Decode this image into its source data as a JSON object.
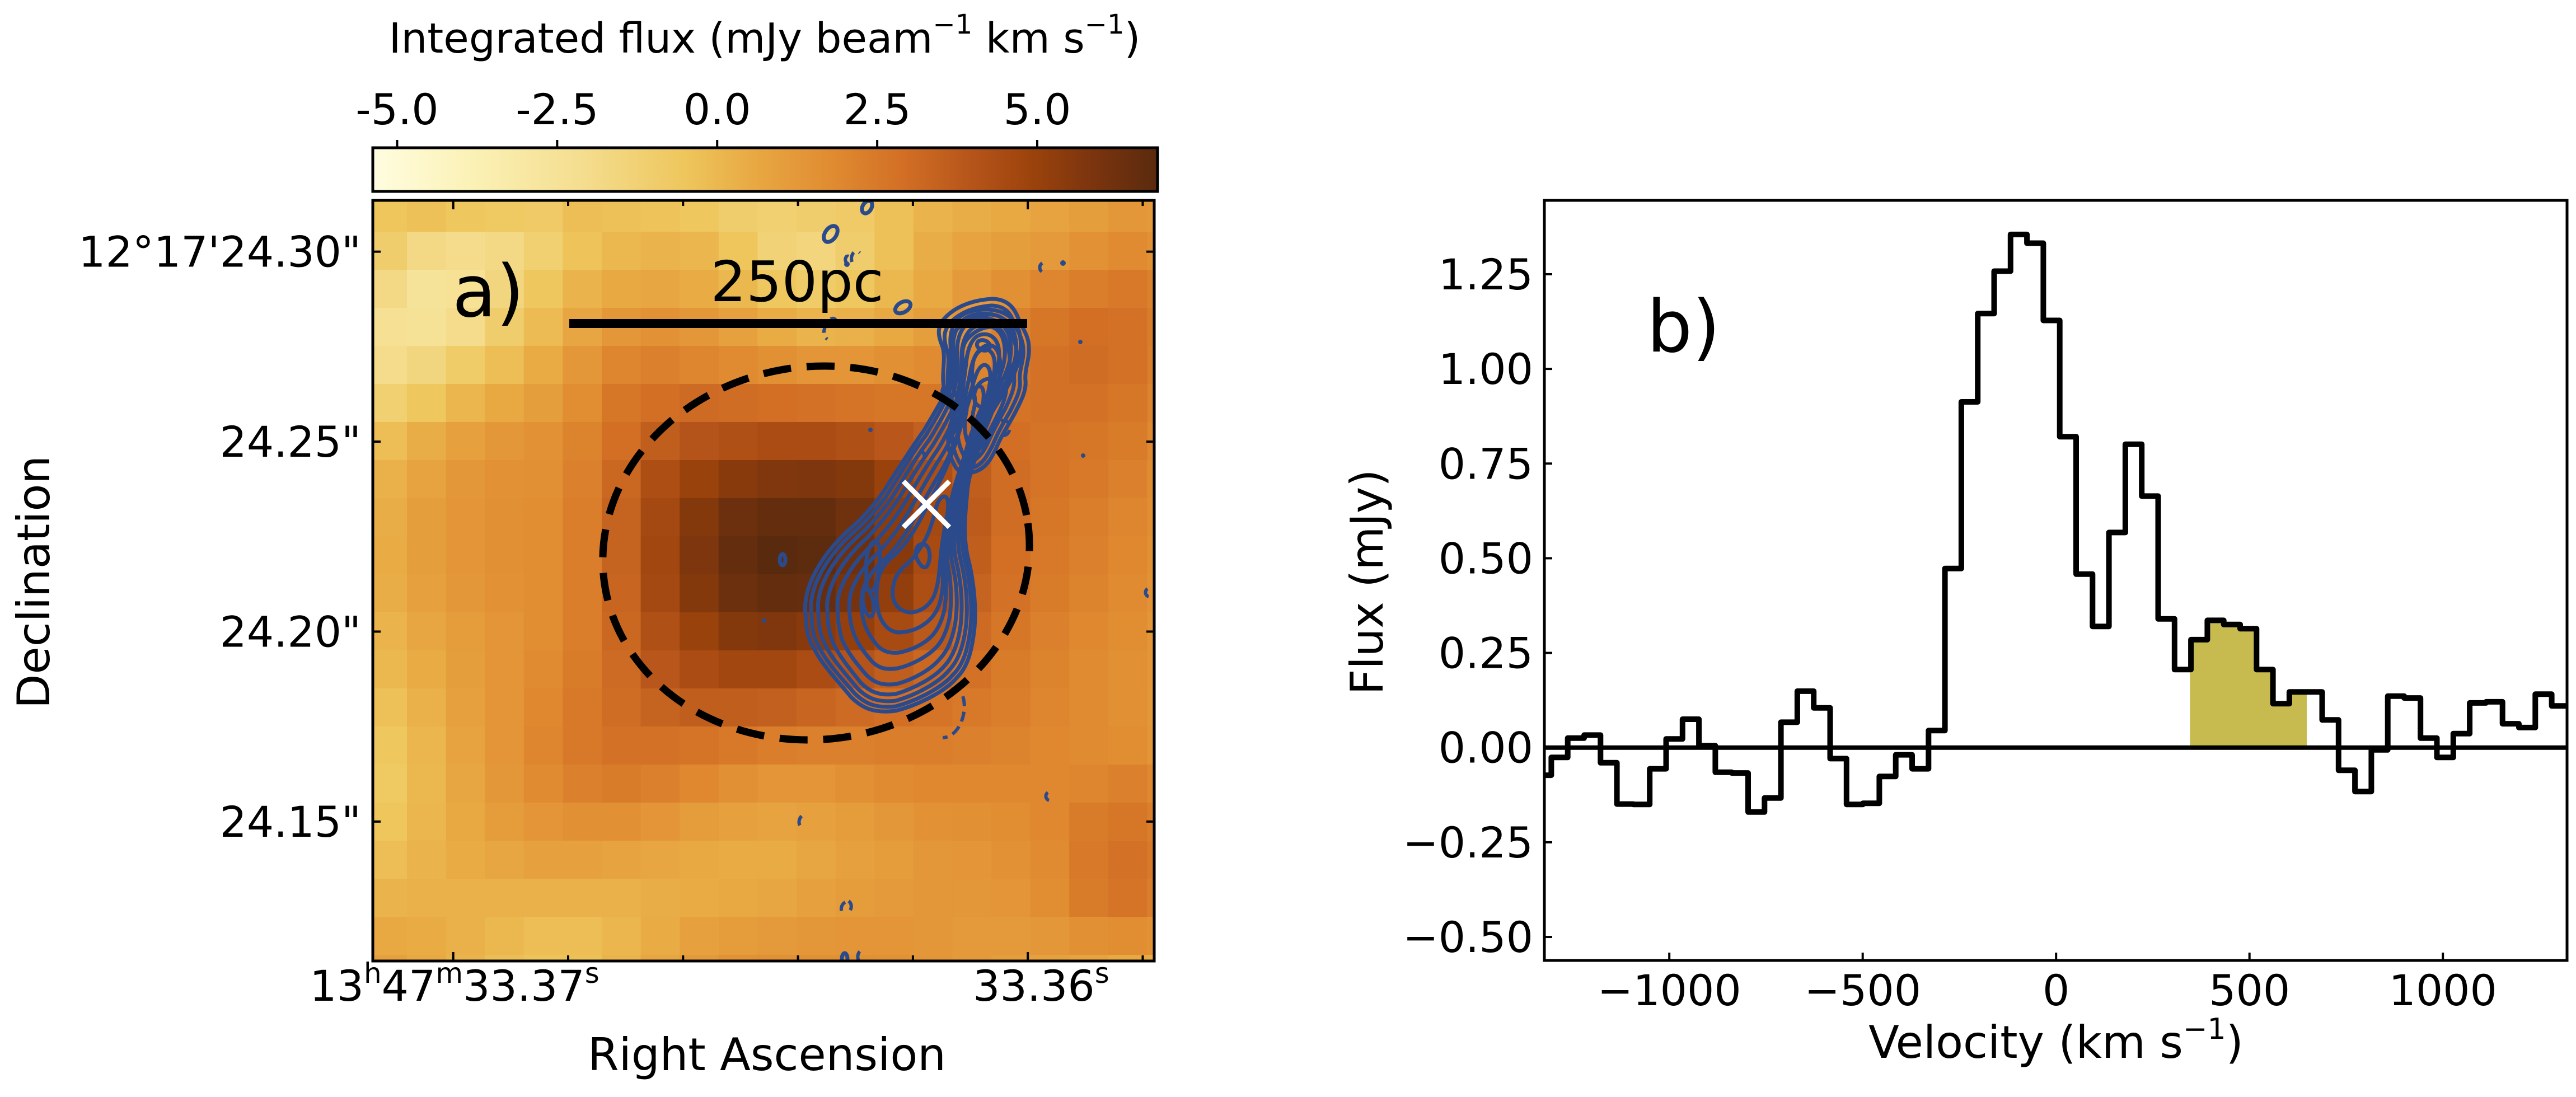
{
  "figure": {
    "panel_a": {
      "label": "a)",
      "colorbar": {
        "title_main": "Integrated flux (mJy beam",
        "title_sup1": "−1",
        "title_mid": " km s",
        "title_sup2": "−1",
        "title_end": ")",
        "range": [
          -5.38,
          6.88
        ],
        "ticks": [
          -5.0,
          -2.5,
          0.0,
          2.5,
          5.0
        ],
        "tick_labels": [
          "-5.0",
          "-2.5",
          "0.0",
          "2.5",
          "5.0"
        ],
        "colormap_stops": [
          {
            "value": -5.38,
            "color": "#fffde0"
          },
          {
            "value": -3.8,
            "color": "#fbf1b5"
          },
          {
            "value": -2.0,
            "color": "#f4dc8c"
          },
          {
            "value": -0.5,
            "color": "#eec65c"
          },
          {
            "value": 0.6,
            "color": "#e8a842"
          },
          {
            "value": 1.8,
            "color": "#e08b31"
          },
          {
            "value": 2.9,
            "color": "#d26f25"
          },
          {
            "value": 4.0,
            "color": "#b5541a"
          },
          {
            "value": 4.9,
            "color": "#9c430c"
          },
          {
            "value": 5.9,
            "color": "#7a340e"
          },
          {
            "value": 6.88,
            "color": "#5a2a0e"
          }
        ]
      },
      "xaxis": {
        "label": "Right Ascension",
        "range_s": [
          33.3714,
          33.3578
        ],
        "major_ticks": [
          {
            "value_s": 33.37,
            "label_h": "13",
            "sup_h": "h",
            "label_m": "47",
            "sup_m": "m",
            "label_s": "33.37",
            "sup_s": "s"
          },
          {
            "value_s": 33.36,
            "label_s": "33.36",
            "sup_s": "s"
          }
        ],
        "minor_ticks_s": [
          33.368,
          33.366,
          33.364,
          33.362,
          33.358
        ]
      },
      "yaxis": {
        "label": "Declination",
        "range_arcsec": [
          24.1133,
          24.3135
        ],
        "ticks": [
          {
            "value": 24.3,
            "label": "12°17'24.30\""
          },
          {
            "value": 24.25,
            "label": "24.25\""
          },
          {
            "value": 24.2,
            "label": "24.20\""
          },
          {
            "value": 24.15,
            "label": "24.15\""
          }
        ]
      },
      "scale_bar": {
        "label": "250pc"
      },
      "marker": {
        "symbol": "x",
        "color": "#ffffff"
      },
      "contour_color": "#2b4a8b",
      "ellipse_style": "dashed black"
    },
    "panel_b": {
      "label": "b)",
      "fill_color": "#c7bb50"
    }
  },
  "chart_data": [
    {
      "type": "heatmap",
      "title": "Integrated flux map with contours",
      "xlabel": "Right Ascension",
      "ylabel": "Declination",
      "colorbar_label": "Integrated flux (mJy beam^-1 km s^-1)",
      "colorbar_range": [
        -5.38,
        6.88
      ],
      "grid_rows": 21,
      "grid_cols": 21,
      "values": [
        [
          -0.5,
          -0.3,
          -0.6,
          -0.7,
          -0.8,
          -0.2,
          -0.3,
          -0.4,
          -0.6,
          -1.0,
          -1.2,
          -1.0,
          -0.8,
          -0.3,
          0.2,
          0.4,
          0.6,
          0.8,
          1.0,
          1.3,
          1.2
        ],
        [
          -1.0,
          -1.8,
          -2.0,
          -1.8,
          -1.2,
          -0.4,
          0.0,
          0.2,
          0.1,
          -0.5,
          -1.3,
          -1.5,
          -1.0,
          -0.3,
          0.4,
          0.8,
          1.0,
          1.2,
          1.5,
          1.8,
          1.6
        ],
        [
          -1.8,
          -2.6,
          -2.4,
          -1.6,
          -0.6,
          0.2,
          0.6,
          0.7,
          0.5,
          0.0,
          -0.6,
          -0.9,
          -0.6,
          0.0,
          0.6,
          1.2,
          1.6,
          2.0,
          2.3,
          2.5,
          2.2
        ],
        [
          -2.3,
          -2.5,
          -2.0,
          -1.0,
          -0.1,
          0.7,
          1.3,
          1.5,
          1.3,
          0.9,
          0.5,
          0.2,
          0.3,
          0.6,
          1.0,
          1.5,
          2.2,
          2.6,
          2.9,
          2.8,
          2.4
        ],
        [
          -2.0,
          -1.6,
          -0.9,
          -0.2,
          0.5,
          1.3,
          2.0,
          2.2,
          2.0,
          1.8,
          1.6,
          1.4,
          1.4,
          1.6,
          1.8,
          2.0,
          2.5,
          2.8,
          3.0,
          2.8,
          2.3
        ],
        [
          -1.2,
          -0.6,
          0.1,
          0.6,
          1.0,
          1.7,
          2.6,
          2.9,
          3.1,
          3.0,
          2.9,
          2.8,
          2.7,
          2.6,
          2.6,
          2.6,
          2.7,
          2.8,
          2.8,
          2.6,
          2.1
        ],
        [
          -0.2,
          0.4,
          0.9,
          1.3,
          1.5,
          2.1,
          2.9,
          3.6,
          4.0,
          4.2,
          4.4,
          4.4,
          4.2,
          3.9,
          3.5,
          3.1,
          2.9,
          2.7,
          2.6,
          2.4,
          1.9
        ],
        [
          0.3,
          0.8,
          1.3,
          1.5,
          1.6,
          2.2,
          3.2,
          4.3,
          5.0,
          5.5,
          5.7,
          5.8,
          5.6,
          5.0,
          4.3,
          3.6,
          3.0,
          2.7,
          2.5,
          2.2,
          1.8
        ],
        [
          0.4,
          1.0,
          1.4,
          1.6,
          1.7,
          2.3,
          3.4,
          4.6,
          5.6,
          6.3,
          6.6,
          6.6,
          6.2,
          5.4,
          4.6,
          3.7,
          3.0,
          2.6,
          2.3,
          2.0,
          1.7
        ],
        [
          0.5,
          1.0,
          1.4,
          1.6,
          1.7,
          2.3,
          3.4,
          4.7,
          5.8,
          6.6,
          6.9,
          6.8,
          6.3,
          5.5,
          4.5,
          3.6,
          2.9,
          2.5,
          2.2,
          1.9,
          1.6
        ],
        [
          0.4,
          0.9,
          1.3,
          1.5,
          1.7,
          2.3,
          3.3,
          4.6,
          5.6,
          6.3,
          6.6,
          6.5,
          6.0,
          5.2,
          4.3,
          3.4,
          2.8,
          2.4,
          2.1,
          1.8,
          1.5
        ],
        [
          0.2,
          0.7,
          1.1,
          1.4,
          1.7,
          2.3,
          3.2,
          4.2,
          5.0,
          5.6,
          5.7,
          5.5,
          5.1,
          4.5,
          3.8,
          3.1,
          2.6,
          2.2,
          1.9,
          1.7,
          1.4
        ],
        [
          0.0,
          0.5,
          1.0,
          1.4,
          1.8,
          2.4,
          3.1,
          3.9,
          4.4,
          4.7,
          4.7,
          4.4,
          4.0,
          3.6,
          3.2,
          2.8,
          2.4,
          2.1,
          1.8,
          1.6,
          1.4
        ],
        [
          -0.3,
          0.3,
          0.9,
          1.4,
          1.9,
          2.5,
          3.0,
          3.4,
          3.6,
          3.6,
          3.5,
          3.3,
          3.1,
          2.9,
          2.7,
          2.5,
          2.3,
          2.0,
          1.8,
          1.6,
          1.3
        ],
        [
          -0.6,
          0.1,
          0.8,
          1.4,
          2.0,
          2.5,
          2.8,
          2.8,
          2.7,
          2.5,
          2.3,
          2.2,
          2.2,
          2.3,
          2.3,
          2.2,
          2.1,
          1.9,
          1.8,
          1.7,
          1.4
        ],
        [
          -0.7,
          0.0,
          0.7,
          1.3,
          1.8,
          2.2,
          2.4,
          2.2,
          1.9,
          1.6,
          1.4,
          1.4,
          1.6,
          1.8,
          1.9,
          1.9,
          1.9,
          1.9,
          2.0,
          2.2,
          1.9
        ],
        [
          -0.5,
          0.1,
          0.6,
          1.1,
          1.4,
          1.6,
          1.6,
          1.4,
          1.1,
          0.9,
          0.8,
          0.9,
          1.1,
          1.3,
          1.5,
          1.6,
          1.7,
          1.9,
          2.4,
          2.6,
          2.3
        ],
        [
          -0.2,
          0.2,
          0.5,
          0.7,
          0.9,
          0.9,
          0.8,
          0.7,
          0.6,
          0.5,
          0.5,
          0.7,
          0.9,
          1.1,
          1.3,
          1.4,
          1.5,
          1.8,
          2.5,
          2.8,
          2.5
        ],
        [
          0.2,
          0.3,
          0.3,
          0.3,
          0.3,
          0.3,
          0.3,
          0.4,
          0.5,
          0.6,
          0.7,
          0.9,
          1.1,
          1.2,
          1.3,
          1.3,
          1.4,
          1.7,
          2.4,
          2.7,
          2.3
        ],
        [
          0.6,
          0.5,
          0.3,
          0.0,
          -0.2,
          -0.2,
          0.1,
          0.5,
          0.9,
          1.1,
          1.2,
          1.3,
          1.4,
          1.4,
          1.3,
          1.2,
          1.2,
          1.3,
          1.6,
          1.7,
          1.5
        ],
        [
          0.9,
          0.6,
          0.2,
          -0.2,
          -0.4,
          -0.3,
          0.2,
          0.7,
          1.2,
          1.5,
          1.6,
          1.6,
          1.6,
          1.5,
          1.4,
          1.2,
          1.0,
          0.9,
          0.8,
          0.6,
          0.4
        ]
      ],
      "annotations": [
        "a)",
        "250pc",
        "white X marker",
        "dashed ellipse",
        "blue contours"
      ]
    },
    {
      "type": "line",
      "style": "step",
      "title": "",
      "xlabel": "Velocity (km s^-1)",
      "ylabel": "Flux (mJy)",
      "xlim": [
        -1323,
        1321
      ],
      "ylim": [
        -0.562,
        1.445
      ],
      "xticks": [
        -1000,
        -500,
        0,
        500,
        1000
      ],
      "xtick_labels": [
        "−1000",
        "−500",
        "0",
        "500",
        "1000"
      ],
      "yticks": [
        -0.5,
        -0.25,
        0.0,
        0.25,
        0.5,
        0.75,
        1.0,
        1.25
      ],
      "ytick_labels": [
        "−0.50",
        "−0.25",
        "0.00",
        "0.25",
        "0.50",
        "0.75",
        "1.00",
        "1.25"
      ],
      "channel_width": 42.4,
      "first_bin_left_edge": -1347.4,
      "flux": [
        -0.073,
        -0.026,
        0.025,
        0.033,
        -0.04,
        -0.149,
        -0.15,
        -0.056,
        0.023,
        0.075,
        0.005,
        -0.065,
        -0.067,
        -0.17,
        -0.133,
        0.067,
        0.149,
        0.105,
        -0.029,
        -0.15,
        -0.147,
        -0.076,
        -0.019,
        -0.056,
        0.045,
        0.473,
        0.913,
        1.146,
        1.258,
        1.355,
        1.332,
        1.128,
        0.821,
        0.458,
        0.32,
        0.568,
        0.801,
        0.664,
        0.34,
        0.206,
        0.285,
        0.336,
        0.325,
        0.314,
        0.206,
        0.116,
        0.147,
        0.147,
        0.073,
        -0.06,
        -0.116,
        -0.006,
        0.136,
        0.131,
        0.025,
        -0.026,
        0.037,
        0.118,
        0.121,
        0.063,
        0.053,
        0.141,
        0.11
      ],
      "zero_line": 0.0,
      "shaded_region": {
        "v_min": 346,
        "v_max": 648,
        "color": "#c7bb50"
      },
      "annotations": [
        "b)"
      ]
    }
  ]
}
